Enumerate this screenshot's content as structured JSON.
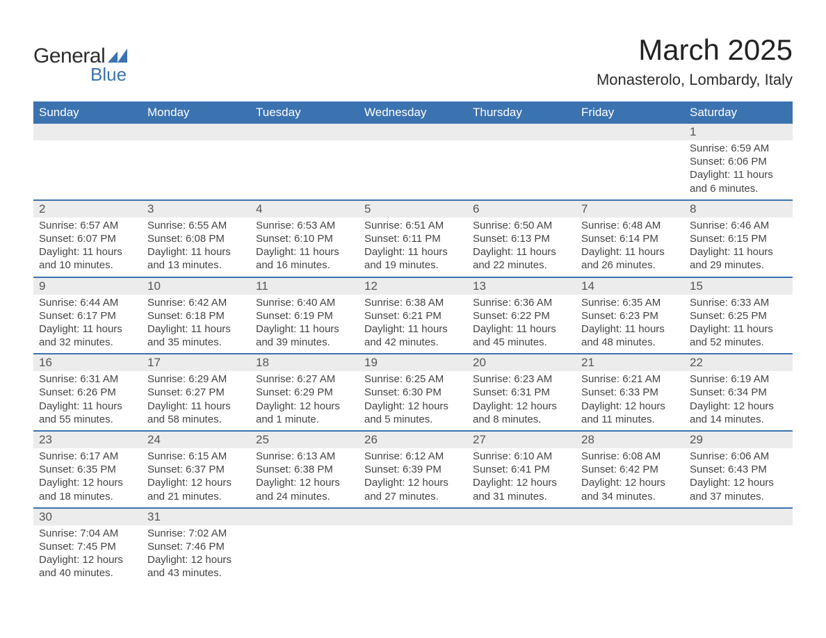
{
  "logo": {
    "text1": "General",
    "text2": "Blue",
    "shape_color": "#3b72b0"
  },
  "header": {
    "title": "March 2025",
    "location": "Monasterolo, Lombardy, Italy"
  },
  "colors": {
    "header_bg": "#3b72b0",
    "header_text": "#ffffff",
    "row_border": "#3b72b0",
    "daynum_bg": "#ececec",
    "text": "#3a3a3a"
  },
  "calendar": {
    "type": "table",
    "day_headers": [
      "Sunday",
      "Monday",
      "Tuesday",
      "Wednesday",
      "Thursday",
      "Friday",
      "Saturday"
    ],
    "weeks": [
      [
        null,
        null,
        null,
        null,
        null,
        null,
        {
          "n": "1",
          "sunrise": "Sunrise: 6:59 AM",
          "sunset": "Sunset: 6:06 PM",
          "daylight": "Daylight: 11 hours and 6 minutes."
        }
      ],
      [
        {
          "n": "2",
          "sunrise": "Sunrise: 6:57 AM",
          "sunset": "Sunset: 6:07 PM",
          "daylight": "Daylight: 11 hours and 10 minutes."
        },
        {
          "n": "3",
          "sunrise": "Sunrise: 6:55 AM",
          "sunset": "Sunset: 6:08 PM",
          "daylight": "Daylight: 11 hours and 13 minutes."
        },
        {
          "n": "4",
          "sunrise": "Sunrise: 6:53 AM",
          "sunset": "Sunset: 6:10 PM",
          "daylight": "Daylight: 11 hours and 16 minutes."
        },
        {
          "n": "5",
          "sunrise": "Sunrise: 6:51 AM",
          "sunset": "Sunset: 6:11 PM",
          "daylight": "Daylight: 11 hours and 19 minutes."
        },
        {
          "n": "6",
          "sunrise": "Sunrise: 6:50 AM",
          "sunset": "Sunset: 6:13 PM",
          "daylight": "Daylight: 11 hours and 22 minutes."
        },
        {
          "n": "7",
          "sunrise": "Sunrise: 6:48 AM",
          "sunset": "Sunset: 6:14 PM",
          "daylight": "Daylight: 11 hours and 26 minutes."
        },
        {
          "n": "8",
          "sunrise": "Sunrise: 6:46 AM",
          "sunset": "Sunset: 6:15 PM",
          "daylight": "Daylight: 11 hours and 29 minutes."
        }
      ],
      [
        {
          "n": "9",
          "sunrise": "Sunrise: 6:44 AM",
          "sunset": "Sunset: 6:17 PM",
          "daylight": "Daylight: 11 hours and 32 minutes."
        },
        {
          "n": "10",
          "sunrise": "Sunrise: 6:42 AM",
          "sunset": "Sunset: 6:18 PM",
          "daylight": "Daylight: 11 hours and 35 minutes."
        },
        {
          "n": "11",
          "sunrise": "Sunrise: 6:40 AM",
          "sunset": "Sunset: 6:19 PM",
          "daylight": "Daylight: 11 hours and 39 minutes."
        },
        {
          "n": "12",
          "sunrise": "Sunrise: 6:38 AM",
          "sunset": "Sunset: 6:21 PM",
          "daylight": "Daylight: 11 hours and 42 minutes."
        },
        {
          "n": "13",
          "sunrise": "Sunrise: 6:36 AM",
          "sunset": "Sunset: 6:22 PM",
          "daylight": "Daylight: 11 hours and 45 minutes."
        },
        {
          "n": "14",
          "sunrise": "Sunrise: 6:35 AM",
          "sunset": "Sunset: 6:23 PM",
          "daylight": "Daylight: 11 hours and 48 minutes."
        },
        {
          "n": "15",
          "sunrise": "Sunrise: 6:33 AM",
          "sunset": "Sunset: 6:25 PM",
          "daylight": "Daylight: 11 hours and 52 minutes."
        }
      ],
      [
        {
          "n": "16",
          "sunrise": "Sunrise: 6:31 AM",
          "sunset": "Sunset: 6:26 PM",
          "daylight": "Daylight: 11 hours and 55 minutes."
        },
        {
          "n": "17",
          "sunrise": "Sunrise: 6:29 AM",
          "sunset": "Sunset: 6:27 PM",
          "daylight": "Daylight: 11 hours and 58 minutes."
        },
        {
          "n": "18",
          "sunrise": "Sunrise: 6:27 AM",
          "sunset": "Sunset: 6:29 PM",
          "daylight": "Daylight: 12 hours and 1 minute."
        },
        {
          "n": "19",
          "sunrise": "Sunrise: 6:25 AM",
          "sunset": "Sunset: 6:30 PM",
          "daylight": "Daylight: 12 hours and 5 minutes."
        },
        {
          "n": "20",
          "sunrise": "Sunrise: 6:23 AM",
          "sunset": "Sunset: 6:31 PM",
          "daylight": "Daylight: 12 hours and 8 minutes."
        },
        {
          "n": "21",
          "sunrise": "Sunrise: 6:21 AM",
          "sunset": "Sunset: 6:33 PM",
          "daylight": "Daylight: 12 hours and 11 minutes."
        },
        {
          "n": "22",
          "sunrise": "Sunrise: 6:19 AM",
          "sunset": "Sunset: 6:34 PM",
          "daylight": "Daylight: 12 hours and 14 minutes."
        }
      ],
      [
        {
          "n": "23",
          "sunrise": "Sunrise: 6:17 AM",
          "sunset": "Sunset: 6:35 PM",
          "daylight": "Daylight: 12 hours and 18 minutes."
        },
        {
          "n": "24",
          "sunrise": "Sunrise: 6:15 AM",
          "sunset": "Sunset: 6:37 PM",
          "daylight": "Daylight: 12 hours and 21 minutes."
        },
        {
          "n": "25",
          "sunrise": "Sunrise: 6:13 AM",
          "sunset": "Sunset: 6:38 PM",
          "daylight": "Daylight: 12 hours and 24 minutes."
        },
        {
          "n": "26",
          "sunrise": "Sunrise: 6:12 AM",
          "sunset": "Sunset: 6:39 PM",
          "daylight": "Daylight: 12 hours and 27 minutes."
        },
        {
          "n": "27",
          "sunrise": "Sunrise: 6:10 AM",
          "sunset": "Sunset: 6:41 PM",
          "daylight": "Daylight: 12 hours and 31 minutes."
        },
        {
          "n": "28",
          "sunrise": "Sunrise: 6:08 AM",
          "sunset": "Sunset: 6:42 PM",
          "daylight": "Daylight: 12 hours and 34 minutes."
        },
        {
          "n": "29",
          "sunrise": "Sunrise: 6:06 AM",
          "sunset": "Sunset: 6:43 PM",
          "daylight": "Daylight: 12 hours and 37 minutes."
        }
      ],
      [
        {
          "n": "30",
          "sunrise": "Sunrise: 7:04 AM",
          "sunset": "Sunset: 7:45 PM",
          "daylight": "Daylight: 12 hours and 40 minutes."
        },
        {
          "n": "31",
          "sunrise": "Sunrise: 7:02 AM",
          "sunset": "Sunset: 7:46 PM",
          "daylight": "Daylight: 12 hours and 43 minutes."
        },
        null,
        null,
        null,
        null,
        null
      ]
    ]
  }
}
